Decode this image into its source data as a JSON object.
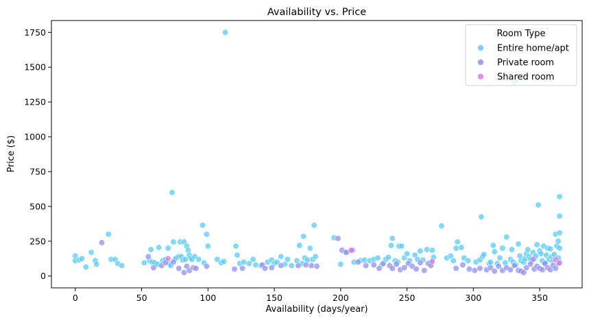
{
  "chart_data": {
    "type": "scatter",
    "title": "Availability vs. Price",
    "xlabel": "Availability (days/year)",
    "ylabel": "Price ($)",
    "xlim": [
      -18,
      382
    ],
    "ylim": [
      -85,
      1835
    ],
    "xticks": [
      0,
      50,
      100,
      150,
      200,
      250,
      300,
      350
    ],
    "yticks": [
      0,
      250,
      500,
      750,
      1000,
      1250,
      1500,
      1750
    ],
    "grid": false,
    "legend_placement": "top-right",
    "legend_title": "Room Type",
    "series": [
      {
        "name": "Entire home/apt",
        "color": "#56c8f4",
        "points": [
          [
            0,
            145
          ],
          [
            0,
            110
          ],
          [
            3,
            115
          ],
          [
            5,
            125
          ],
          [
            8,
            65
          ],
          [
            12,
            170
          ],
          [
            15,
            110
          ],
          [
            16,
            85
          ],
          [
            25,
            300
          ],
          [
            27,
            120
          ],
          [
            30,
            120
          ],
          [
            32,
            90
          ],
          [
            35,
            75
          ],
          [
            52,
            95
          ],
          [
            56,
            110
          ],
          [
            57,
            190
          ],
          [
            58,
            100
          ],
          [
            60,
            95
          ],
          [
            62,
            85
          ],
          [
            63,
            205
          ],
          [
            66,
            110
          ],
          [
            68,
            120
          ],
          [
            70,
            200
          ],
          [
            71,
            90
          ],
          [
            72,
            75
          ],
          [
            73,
            600
          ],
          [
            74,
            245
          ],
          [
            75,
            120
          ],
          [
            76,
            130
          ],
          [
            78,
            140
          ],
          [
            79,
            245
          ],
          [
            80,
            140
          ],
          [
            81,
            115
          ],
          [
            82,
            245
          ],
          [
            83,
            120
          ],
          [
            84,
            215
          ],
          [
            85,
            185
          ],
          [
            86,
            150
          ],
          [
            87,
            130
          ],
          [
            88,
            120
          ],
          [
            90,
            140
          ],
          [
            93,
            120
          ],
          [
            96,
            365
          ],
          [
            97,
            95
          ],
          [
            99,
            300
          ],
          [
            100,
            215
          ],
          [
            107,
            120
          ],
          [
            110,
            95
          ],
          [
            112,
            105
          ],
          [
            113,
            1750
          ],
          [
            121,
            215
          ],
          [
            122,
            150
          ],
          [
            124,
            90
          ],
          [
            127,
            100
          ],
          [
            131,
            90
          ],
          [
            134,
            120
          ],
          [
            136,
            80
          ],
          [
            140,
            75
          ],
          [
            145,
            100
          ],
          [
            148,
            115
          ],
          [
            150,
            90
          ],
          [
            152,
            100
          ],
          [
            155,
            140
          ],
          [
            158,
            85
          ],
          [
            160,
            120
          ],
          [
            163,
            75
          ],
          [
            167,
            110
          ],
          [
            169,
            220
          ],
          [
            171,
            90
          ],
          [
            172,
            285
          ],
          [
            173,
            130
          ],
          [
            175,
            115
          ],
          [
            177,
            200
          ],
          [
            179,
            120
          ],
          [
            180,
            365
          ],
          [
            181,
            140
          ],
          [
            195,
            275
          ],
          [
            200,
            85
          ],
          [
            205,
            170
          ],
          [
            210,
            100
          ],
          [
            215,
            110
          ],
          [
            218,
            115
          ],
          [
            222,
            110
          ],
          [
            225,
            120
          ],
          [
            228,
            130
          ],
          [
            231,
            80
          ],
          [
            234,
            120
          ],
          [
            236,
            135
          ],
          [
            238,
            220
          ],
          [
            239,
            270
          ],
          [
            241,
            110
          ],
          [
            243,
            100
          ],
          [
            244,
            215
          ],
          [
            246,
            215
          ],
          [
            248,
            130
          ],
          [
            250,
            160
          ],
          [
            252,
            110
          ],
          [
            256,
            150
          ],
          [
            258,
            120
          ],
          [
            260,
            180
          ],
          [
            262,
            115
          ],
          [
            265,
            190
          ],
          [
            268,
            95
          ],
          [
            269,
            185
          ],
          [
            270,
            135
          ],
          [
            276,
            360
          ],
          [
            280,
            130
          ],
          [
            283,
            145
          ],
          [
            285,
            110
          ],
          [
            287,
            200
          ],
          [
            288,
            245
          ],
          [
            291,
            205
          ],
          [
            293,
            130
          ],
          [
            296,
            110
          ],
          [
            302,
            100
          ],
          [
            305,
            115
          ],
          [
            306,
            425
          ],
          [
            307,
            140
          ],
          [
            308,
            155
          ],
          [
            312,
            90
          ],
          [
            313,
            100
          ],
          [
            315,
            220
          ],
          [
            316,
            175
          ],
          [
            318,
            90
          ],
          [
            320,
            130
          ],
          [
            322,
            200
          ],
          [
            324,
            95
          ],
          [
            325,
            280
          ],
          [
            328,
            120
          ],
          [
            329,
            190
          ],
          [
            330,
            100
          ],
          [
            331,
            1390
          ],
          [
            332,
            80
          ],
          [
            334,
            230
          ],
          [
            335,
            145
          ],
          [
            336,
            110
          ],
          [
            338,
            100
          ],
          [
            339,
            125
          ],
          [
            340,
            160
          ],
          [
            341,
            190
          ],
          [
            342,
            140
          ],
          [
            343,
            120
          ],
          [
            344,
            105
          ],
          [
            345,
            170
          ],
          [
            346,
            125
          ],
          [
            347,
            145
          ],
          [
            348,
            225
          ],
          [
            349,
            510
          ],
          [
            350,
            180
          ],
          [
            351,
            160
          ],
          [
            352,
            110
          ],
          [
            353,
            215
          ],
          [
            354,
            90
          ],
          [
            355,
            150
          ],
          [
            356,
            200
          ],
          [
            357,
            120
          ],
          [
            358,
            195
          ],
          [
            359,
            140
          ],
          [
            360,
            105
          ],
          [
            361,
            155
          ],
          [
            362,
            300
          ],
          [
            363,
            215
          ],
          [
            364,
            250
          ],
          [
            365,
            570
          ],
          [
            365,
            430
          ],
          [
            365,
            310
          ],
          [
            365,
            200
          ],
          [
            364,
            130
          ]
        ]
      },
      {
        "name": "Private room",
        "color": "#8d8bf0",
        "points": [
          [
            20,
            240
          ],
          [
            55,
            140
          ],
          [
            59,
            60
          ],
          [
            65,
            75
          ],
          [
            68,
            95
          ],
          [
            74,
            100
          ],
          [
            78,
            55
          ],
          [
            82,
            25
          ],
          [
            84,
            70
          ],
          [
            86,
            40
          ],
          [
            89,
            60
          ],
          [
            91,
            55
          ],
          [
            99,
            70
          ],
          [
            120,
            50
          ],
          [
            126,
            55
          ],
          [
            141,
            80
          ],
          [
            143,
            55
          ],
          [
            148,
            60
          ],
          [
            155,
            75
          ],
          [
            168,
            75
          ],
          [
            174,
            80
          ],
          [
            178,
            75
          ],
          [
            182,
            70
          ],
          [
            198,
            270
          ],
          [
            201,
            185
          ],
          [
            204,
            170
          ],
          [
            209,
            185
          ],
          [
            213,
            100
          ],
          [
            219,
            75
          ],
          [
            225,
            80
          ],
          [
            229,
            55
          ],
          [
            232,
            90
          ],
          [
            237,
            75
          ],
          [
            239,
            55
          ],
          [
            242,
            85
          ],
          [
            245,
            45
          ],
          [
            248,
            60
          ],
          [
            251,
            90
          ],
          [
            254,
            70
          ],
          [
            257,
            50
          ],
          [
            260,
            95
          ],
          [
            263,
            40
          ],
          [
            266,
            90
          ],
          [
            268,
            75
          ],
          [
            287,
            55
          ],
          [
            292,
            80
          ],
          [
            297,
            50
          ],
          [
            301,
            40
          ],
          [
            305,
            55
          ],
          [
            310,
            45
          ],
          [
            313,
            60
          ],
          [
            316,
            35
          ],
          [
            319,
            70
          ],
          [
            322,
            40
          ],
          [
            325,
            60
          ],
          [
            328,
            45
          ],
          [
            331,
            75
          ],
          [
            334,
            40
          ],
          [
            336,
            35
          ],
          [
            338,
            25
          ],
          [
            340,
            60
          ],
          [
            343,
            85
          ],
          [
            346,
            50
          ],
          [
            348,
            70
          ],
          [
            350,
            55
          ],
          [
            352,
            45
          ],
          [
            354,
            90
          ],
          [
            356,
            60
          ],
          [
            358,
            45
          ],
          [
            360,
            75
          ],
          [
            362,
            55
          ],
          [
            364,
            90
          ]
        ]
      },
      {
        "name": "Shared room",
        "color": "#d773e8",
        "points": [
          [
            70,
            125
          ],
          [
            208,
            185
          ],
          [
            269,
            105
          ],
          [
            345,
            120
          ],
          [
            362,
            120
          ],
          [
            365,
            95
          ]
        ]
      }
    ]
  }
}
